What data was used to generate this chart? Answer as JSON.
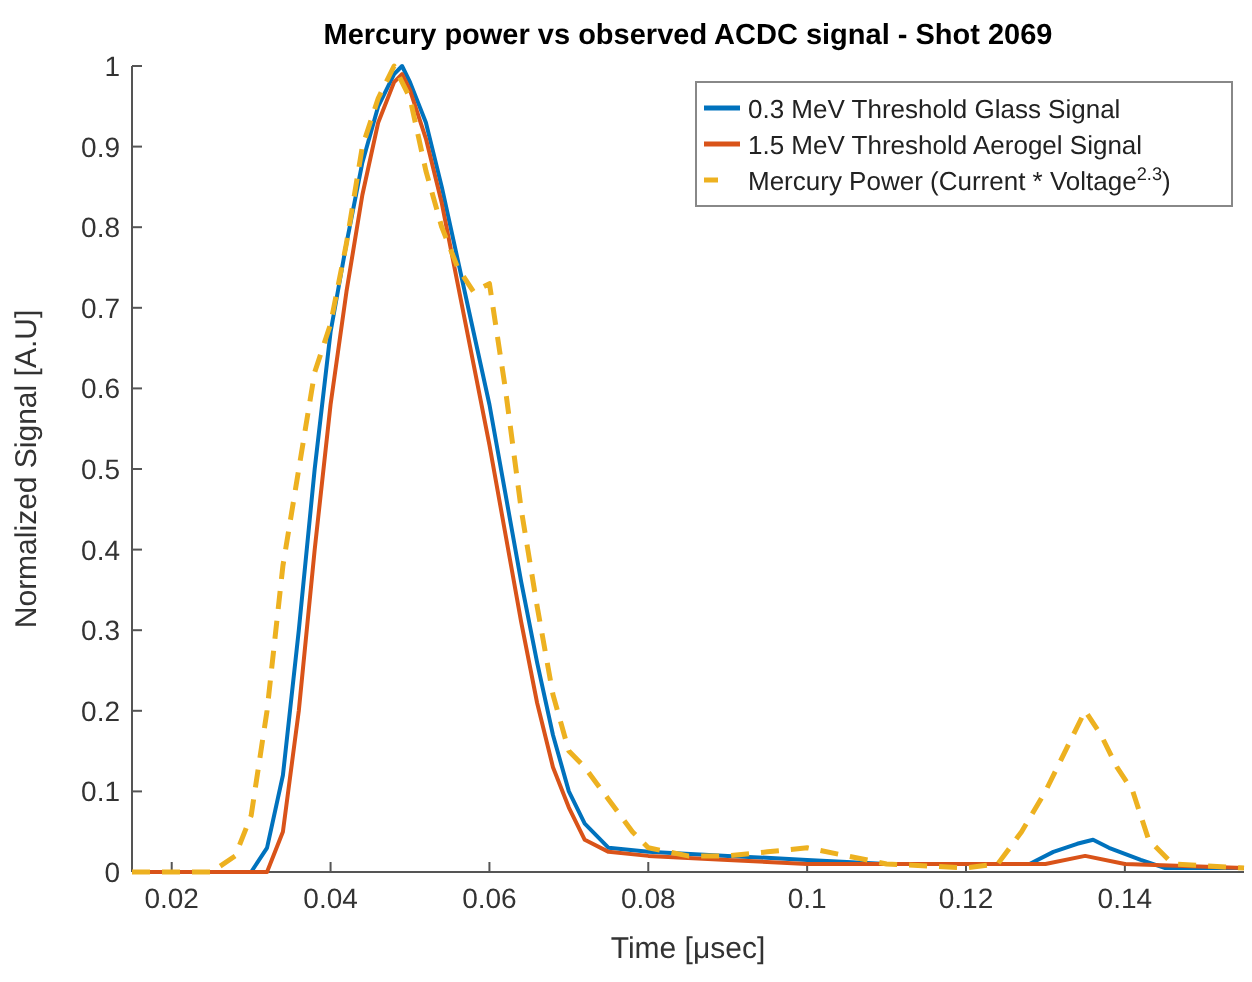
{
  "chart_data": {
    "type": "line",
    "title": "Mercury power vs observed ACDC signal - Shot 2069",
    "xlabel": "Time [μsec]",
    "ylabel": "Normalized Signal [A.U]",
    "xlim": [
      0.015,
      0.155
    ],
    "xticks": [
      0.02,
      0.04,
      0.06,
      0.08,
      0.1,
      0.12,
      0.14
    ],
    "ylim": [
      0,
      1
    ],
    "yticks": [
      0,
      0.1,
      0.2,
      0.3,
      0.4,
      0.5,
      0.6,
      0.7,
      0.8,
      0.9,
      1
    ],
    "legend": "top right",
    "grid": false,
    "series": [
      {
        "name": "0.3 MeV Threshold Glass Signal",
        "color": "#0072bd",
        "line_style": "solid",
        "x": [
          0.015,
          0.03,
          0.032,
          0.034,
          0.036,
          0.038,
          0.04,
          0.042,
          0.044,
          0.046,
          0.048,
          0.049,
          0.05,
          0.052,
          0.054,
          0.056,
          0.058,
          0.06,
          0.062,
          0.064,
          0.066,
          0.068,
          0.07,
          0.072,
          0.075,
          0.08,
          0.09,
          0.1,
          0.11,
          0.12,
          0.128,
          0.131,
          0.134,
          0.136,
          0.138,
          0.142,
          0.145,
          0.155
        ],
        "values": [
          0,
          0,
          0.03,
          0.12,
          0.3,
          0.5,
          0.67,
          0.78,
          0.88,
          0.95,
          0.99,
          1,
          0.98,
          0.93,
          0.85,
          0.76,
          0.67,
          0.58,
          0.47,
          0.36,
          0.26,
          0.17,
          0.1,
          0.06,
          0.03,
          0.025,
          0.02,
          0.015,
          0.01,
          0.01,
          0.01,
          0.025,
          0.035,
          0.04,
          0.03,
          0.015,
          0.005,
          0.005
        ]
      },
      {
        "name": "1.5 MeV Threshold Aerogel Signal",
        "color": "#d95319",
        "line_style": "solid",
        "x": [
          0.015,
          0.032,
          0.034,
          0.036,
          0.038,
          0.04,
          0.042,
          0.044,
          0.046,
          0.048,
          0.049,
          0.05,
          0.052,
          0.054,
          0.056,
          0.058,
          0.06,
          0.062,
          0.064,
          0.066,
          0.068,
          0.07,
          0.072,
          0.075,
          0.08,
          0.09,
          0.1,
          0.11,
          0.12,
          0.13,
          0.135,
          0.14,
          0.155
        ],
        "values": [
          0,
          0,
          0.05,
          0.2,
          0.4,
          0.58,
          0.72,
          0.84,
          0.93,
          0.98,
          0.99,
          0.97,
          0.91,
          0.83,
          0.73,
          0.63,
          0.53,
          0.42,
          0.31,
          0.21,
          0.13,
          0.08,
          0.04,
          0.025,
          0.02,
          0.015,
          0.01,
          0.01,
          0.01,
          0.01,
          0.02,
          0.01,
          0.005
        ]
      },
      {
        "name": "Mercury Power (Current * Voltage$^{2.3}$)",
        "color": "#edb120",
        "line_style": "dashed",
        "x": [
          0.015,
          0.025,
          0.028,
          0.03,
          0.032,
          0.034,
          0.036,
          0.038,
          0.04,
          0.042,
          0.044,
          0.046,
          0.048,
          0.05,
          0.052,
          0.054,
          0.056,
          0.058,
          0.06,
          0.062,
          0.064,
          0.066,
          0.068,
          0.07,
          0.072,
          0.075,
          0.078,
          0.08,
          0.085,
          0.09,
          0.095,
          0.1,
          0.105,
          0.11,
          0.12,
          0.124,
          0.127,
          0.13,
          0.133,
          0.135,
          0.137,
          0.139,
          0.141,
          0.143,
          0.146,
          0.155
        ],
        "values": [
          0,
          0,
          0.02,
          0.07,
          0.2,
          0.38,
          0.5,
          0.62,
          0.68,
          0.78,
          0.9,
          0.96,
          1,
          0.96,
          0.87,
          0.8,
          0.75,
          0.72,
          0.73,
          0.6,
          0.45,
          0.33,
          0.22,
          0.15,
          0.13,
          0.09,
          0.05,
          0.03,
          0.02,
          0.02,
          0.025,
          0.03,
          0.02,
          0.01,
          0.005,
          0.01,
          0.05,
          0.1,
          0.16,
          0.2,
          0.17,
          0.13,
          0.1,
          0.04,
          0.01,
          0.005
        ]
      }
    ]
  }
}
